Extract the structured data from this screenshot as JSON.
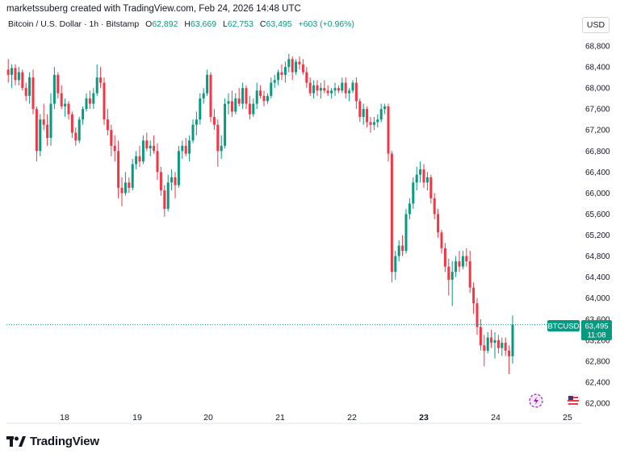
{
  "header": {
    "creator_line": "marketssuberg created with TradingView.com, Feb 24, 2026 14:48 UTC",
    "symbol": "Bitcoin / U.S. Dollar · 1h · Bitstamp",
    "ohlc": [
      {
        "label": "O",
        "value": "62,892"
      },
      {
        "label": "H",
        "value": "63,669"
      },
      {
        "label": "L",
        "value": "62,753"
      },
      {
        "label": "C",
        "value": "63,495"
      }
    ],
    "change": "+603 (+0.96%)",
    "currency_button": "USD"
  },
  "price_badge": {
    "ticker": "BTCUSD",
    "price": "63,495",
    "countdown": "11:08"
  },
  "colors": {
    "up": "#089981",
    "down": "#f23645",
    "accent": "#089981"
  },
  "footer": {
    "logo_text": "TradingView"
  },
  "chart_data": {
    "type": "candlestick",
    "title": "Bitcoin / U.S. Dollar · 1h · Bitstamp",
    "ylim": [
      62000,
      68800
    ],
    "y_ticks": [
      "62,000",
      "62,400",
      "62,800",
      "63,200",
      "63,600",
      "64,000",
      "64,400",
      "64,800",
      "65,200",
      "65,600",
      "66,000",
      "66,400",
      "66,800",
      "67,200",
      "67,600",
      "68,000",
      "68,400",
      "68,800"
    ],
    "x_ticks": [
      {
        "label": "18",
        "bold": false
      },
      {
        "label": "19",
        "bold": false
      },
      {
        "label": "20",
        "bold": false
      },
      {
        "label": "21",
        "bold": false
      },
      {
        "label": "22",
        "bold": false
      },
      {
        "label": "23",
        "bold": true
      },
      {
        "label": "24",
        "bold": false
      },
      {
        "label": "25",
        "bold": false
      }
    ],
    "last_price": 63495,
    "candles": [
      {
        "o": 68350,
        "h": 68550,
        "l": 68100,
        "c": 68250
      },
      {
        "o": 68250,
        "h": 68450,
        "l": 68000,
        "c": 68380
      },
      {
        "o": 68380,
        "h": 68450,
        "l": 68050,
        "c": 68150
      },
      {
        "o": 68150,
        "h": 68400,
        "l": 68050,
        "c": 68300
      },
      {
        "o": 68300,
        "h": 68350,
        "l": 67950,
        "c": 68000
      },
      {
        "o": 68000,
        "h": 68100,
        "l": 67750,
        "c": 67850
      },
      {
        "o": 67850,
        "h": 68300,
        "l": 67700,
        "c": 68200
      },
      {
        "o": 68200,
        "h": 68350,
        "l": 67500,
        "c": 67600
      },
      {
        "o": 67600,
        "h": 67650,
        "l": 66600,
        "c": 66800
      },
      {
        "o": 66800,
        "h": 67500,
        "l": 66700,
        "c": 67400
      },
      {
        "o": 67400,
        "h": 67700,
        "l": 67200,
        "c": 67300
      },
      {
        "o": 67300,
        "h": 67500,
        "l": 66900,
        "c": 67050
      },
      {
        "o": 67050,
        "h": 67900,
        "l": 66900,
        "c": 67700
      },
      {
        "o": 67700,
        "h": 68400,
        "l": 67600,
        "c": 68250
      },
      {
        "o": 68250,
        "h": 68300,
        "l": 67800,
        "c": 67900
      },
      {
        "o": 67900,
        "h": 68050,
        "l": 67600,
        "c": 67650
      },
      {
        "o": 67650,
        "h": 67800,
        "l": 67450,
        "c": 67700
      },
      {
        "o": 67700,
        "h": 67750,
        "l": 67400,
        "c": 67500
      },
      {
        "o": 67500,
        "h": 67550,
        "l": 67050,
        "c": 67150
      },
      {
        "o": 67150,
        "h": 67250,
        "l": 66900,
        "c": 67000
      },
      {
        "o": 67000,
        "h": 67450,
        "l": 66950,
        "c": 67400
      },
      {
        "o": 67400,
        "h": 67650,
        "l": 67300,
        "c": 67600
      },
      {
        "o": 67600,
        "h": 67900,
        "l": 67550,
        "c": 67800
      },
      {
        "o": 67800,
        "h": 67950,
        "l": 67600,
        "c": 67700
      },
      {
        "o": 67700,
        "h": 68000,
        "l": 67600,
        "c": 67900
      },
      {
        "o": 67900,
        "h": 68450,
        "l": 67850,
        "c": 68200
      },
      {
        "o": 68200,
        "h": 68400,
        "l": 68000,
        "c": 68100
      },
      {
        "o": 68100,
        "h": 68200,
        "l": 67300,
        "c": 67400
      },
      {
        "o": 67400,
        "h": 67600,
        "l": 67100,
        "c": 67200
      },
      {
        "o": 67200,
        "h": 67300,
        "l": 66700,
        "c": 66900
      },
      {
        "o": 66900,
        "h": 67100,
        "l": 66600,
        "c": 66800
      },
      {
        "o": 66800,
        "h": 67000,
        "l": 65900,
        "c": 66100
      },
      {
        "o": 66100,
        "h": 66300,
        "l": 65750,
        "c": 66000
      },
      {
        "o": 66000,
        "h": 66400,
        "l": 65950,
        "c": 66200
      },
      {
        "o": 66200,
        "h": 66300,
        "l": 66000,
        "c": 66100
      },
      {
        "o": 66100,
        "h": 66650,
        "l": 66050,
        "c": 66550
      },
      {
        "o": 66550,
        "h": 66800,
        "l": 66450,
        "c": 66700
      },
      {
        "o": 66700,
        "h": 66900,
        "l": 66500,
        "c": 66600
      },
      {
        "o": 66600,
        "h": 67100,
        "l": 66550,
        "c": 67000
      },
      {
        "o": 67000,
        "h": 67150,
        "l": 66800,
        "c": 66850
      },
      {
        "o": 66850,
        "h": 67000,
        "l": 66700,
        "c": 66900
      },
      {
        "o": 66900,
        "h": 67100,
        "l": 66750,
        "c": 66800
      },
      {
        "o": 66800,
        "h": 66950,
        "l": 66250,
        "c": 66400
      },
      {
        "o": 66400,
        "h": 66500,
        "l": 65950,
        "c": 66050
      },
      {
        "o": 66050,
        "h": 66150,
        "l": 65550,
        "c": 65700
      },
      {
        "o": 65700,
        "h": 66350,
        "l": 65650,
        "c": 66200
      },
      {
        "o": 66200,
        "h": 66450,
        "l": 66050,
        "c": 66300
      },
      {
        "o": 66300,
        "h": 66400,
        "l": 65900,
        "c": 66150
      },
      {
        "o": 66150,
        "h": 66900,
        "l": 66100,
        "c": 66800
      },
      {
        "o": 66800,
        "h": 67000,
        "l": 66650,
        "c": 66900
      },
      {
        "o": 66900,
        "h": 67050,
        "l": 66700,
        "c": 66750
      },
      {
        "o": 66750,
        "h": 67100,
        "l": 66600,
        "c": 67000
      },
      {
        "o": 67000,
        "h": 67400,
        "l": 66950,
        "c": 67300
      },
      {
        "o": 67300,
        "h": 67550,
        "l": 67100,
        "c": 67400
      },
      {
        "o": 67400,
        "h": 67900,
        "l": 67300,
        "c": 67800
      },
      {
        "o": 67800,
        "h": 68000,
        "l": 67700,
        "c": 67900
      },
      {
        "o": 67900,
        "h": 68350,
        "l": 67850,
        "c": 68250
      },
      {
        "o": 68250,
        "h": 68300,
        "l": 67350,
        "c": 67450
      },
      {
        "o": 67450,
        "h": 67600,
        "l": 67200,
        "c": 67300
      },
      {
        "o": 67300,
        "h": 67400,
        "l": 66500,
        "c": 66800
      },
      {
        "o": 66800,
        "h": 67100,
        "l": 66650,
        "c": 66900
      },
      {
        "o": 66900,
        "h": 67800,
        "l": 66850,
        "c": 67700
      },
      {
        "o": 67700,
        "h": 67900,
        "l": 67500,
        "c": 67750
      },
      {
        "o": 67750,
        "h": 67950,
        "l": 67450,
        "c": 67550
      },
      {
        "o": 67550,
        "h": 67900,
        "l": 67500,
        "c": 67800
      },
      {
        "o": 67800,
        "h": 68000,
        "l": 67650,
        "c": 67700
      },
      {
        "o": 67700,
        "h": 68100,
        "l": 67600,
        "c": 68000
      },
      {
        "o": 68000,
        "h": 68050,
        "l": 67600,
        "c": 67700
      },
      {
        "o": 67700,
        "h": 67850,
        "l": 67400,
        "c": 67500
      },
      {
        "o": 67500,
        "h": 67800,
        "l": 67450,
        "c": 67700
      },
      {
        "o": 67700,
        "h": 68100,
        "l": 67600,
        "c": 67950
      },
      {
        "o": 67950,
        "h": 68050,
        "l": 67800,
        "c": 67850
      },
      {
        "o": 67850,
        "h": 67950,
        "l": 67650,
        "c": 67750
      },
      {
        "o": 67750,
        "h": 67900,
        "l": 67700,
        "c": 67850
      },
      {
        "o": 67850,
        "h": 68200,
        "l": 67800,
        "c": 68100
      },
      {
        "o": 68100,
        "h": 68250,
        "l": 68000,
        "c": 68150
      },
      {
        "o": 68150,
        "h": 68350,
        "l": 68050,
        "c": 68300
      },
      {
        "o": 68300,
        "h": 68450,
        "l": 68150,
        "c": 68250
      },
      {
        "o": 68250,
        "h": 68500,
        "l": 68100,
        "c": 68400
      },
      {
        "o": 68400,
        "h": 68650,
        "l": 68300,
        "c": 68550
      },
      {
        "o": 68550,
        "h": 68600,
        "l": 68150,
        "c": 68300
      },
      {
        "o": 68300,
        "h": 68550,
        "l": 68250,
        "c": 68500
      },
      {
        "o": 68500,
        "h": 68600,
        "l": 68350,
        "c": 68450
      },
      {
        "o": 68450,
        "h": 68550,
        "l": 68250,
        "c": 68300
      },
      {
        "o": 68300,
        "h": 68400,
        "l": 68000,
        "c": 68100
      },
      {
        "o": 68100,
        "h": 68200,
        "l": 67850,
        "c": 67900
      },
      {
        "o": 67900,
        "h": 68150,
        "l": 67800,
        "c": 68050
      },
      {
        "o": 68050,
        "h": 68150,
        "l": 67850,
        "c": 67950
      },
      {
        "o": 67950,
        "h": 68100,
        "l": 67800,
        "c": 68000
      },
      {
        "o": 68000,
        "h": 68150,
        "l": 67900,
        "c": 67950
      },
      {
        "o": 67950,
        "h": 68050,
        "l": 67850,
        "c": 67900
      },
      {
        "o": 67900,
        "h": 68000,
        "l": 67800,
        "c": 67950
      },
      {
        "o": 67950,
        "h": 68100,
        "l": 67850,
        "c": 68000
      },
      {
        "o": 68000,
        "h": 68050,
        "l": 67900,
        "c": 67950
      },
      {
        "o": 67950,
        "h": 68200,
        "l": 67900,
        "c": 68100
      },
      {
        "o": 68100,
        "h": 68200,
        "l": 67800,
        "c": 67900
      },
      {
        "o": 67900,
        "h": 68000,
        "l": 67750,
        "c": 67950
      },
      {
        "o": 67950,
        "h": 68150,
        "l": 67900,
        "c": 68100
      },
      {
        "o": 68100,
        "h": 68200,
        "l": 67600,
        "c": 67750
      },
      {
        "o": 67750,
        "h": 67800,
        "l": 67350,
        "c": 67450
      },
      {
        "o": 67450,
        "h": 67700,
        "l": 67300,
        "c": 67600
      },
      {
        "o": 67600,
        "h": 67650,
        "l": 67250,
        "c": 67350
      },
      {
        "o": 67350,
        "h": 67450,
        "l": 67150,
        "c": 67300
      },
      {
        "o": 67300,
        "h": 67450,
        "l": 67200,
        "c": 67350
      },
      {
        "o": 67350,
        "h": 67500,
        "l": 67250,
        "c": 67400
      },
      {
        "o": 67400,
        "h": 67700,
        "l": 67350,
        "c": 67600
      },
      {
        "o": 67600,
        "h": 67700,
        "l": 67500,
        "c": 67650
      },
      {
        "o": 67650,
        "h": 67700,
        "l": 66600,
        "c": 66750
      },
      {
        "o": 66750,
        "h": 66800,
        "l": 64300,
        "c": 64500
      },
      {
        "o": 64500,
        "h": 64900,
        "l": 64350,
        "c": 64800
      },
      {
        "o": 64800,
        "h": 65100,
        "l": 64700,
        "c": 65000
      },
      {
        "o": 65000,
        "h": 65200,
        "l": 64800,
        "c": 64900
      },
      {
        "o": 64900,
        "h": 65700,
        "l": 64850,
        "c": 65600
      },
      {
        "o": 65600,
        "h": 65900,
        "l": 65500,
        "c": 65800
      },
      {
        "o": 65800,
        "h": 66300,
        "l": 65700,
        "c": 66200
      },
      {
        "o": 66200,
        "h": 66500,
        "l": 66050,
        "c": 66350
      },
      {
        "o": 66350,
        "h": 66600,
        "l": 66200,
        "c": 66450
      },
      {
        "o": 66450,
        "h": 66550,
        "l": 66100,
        "c": 66200
      },
      {
        "o": 66200,
        "h": 66400,
        "l": 66050,
        "c": 66300
      },
      {
        "o": 66300,
        "h": 66350,
        "l": 65800,
        "c": 65900
      },
      {
        "o": 65900,
        "h": 66000,
        "l": 65500,
        "c": 65600
      },
      {
        "o": 65600,
        "h": 65700,
        "l": 65150,
        "c": 65250
      },
      {
        "o": 65250,
        "h": 65300,
        "l": 64850,
        "c": 64950
      },
      {
        "o": 64950,
        "h": 65050,
        "l": 64500,
        "c": 64600
      },
      {
        "o": 64600,
        "h": 64750,
        "l": 64050,
        "c": 64350
      },
      {
        "o": 64350,
        "h": 64700,
        "l": 63850,
        "c": 64500
      },
      {
        "o": 64500,
        "h": 64800,
        "l": 64400,
        "c": 64700
      },
      {
        "o": 64700,
        "h": 64900,
        "l": 64500,
        "c": 64600
      },
      {
        "o": 64600,
        "h": 64900,
        "l": 64550,
        "c": 64800
      },
      {
        "o": 64800,
        "h": 64950,
        "l": 64600,
        "c": 64700
      },
      {
        "o": 64700,
        "h": 64900,
        "l": 64100,
        "c": 64200
      },
      {
        "o": 64200,
        "h": 64300,
        "l": 63700,
        "c": 63900
      },
      {
        "o": 63900,
        "h": 64000,
        "l": 63300,
        "c": 63450
      },
      {
        "o": 63450,
        "h": 63600,
        "l": 63000,
        "c": 63100
      },
      {
        "o": 63100,
        "h": 63300,
        "l": 62700,
        "c": 63000
      },
      {
        "o": 63000,
        "h": 63350,
        "l": 62950,
        "c": 63250
      },
      {
        "o": 63250,
        "h": 63400,
        "l": 63050,
        "c": 63150
      },
      {
        "o": 63150,
        "h": 63350,
        "l": 62850,
        "c": 63200
      },
      {
        "o": 63200,
        "h": 63300,
        "l": 62950,
        "c": 63050
      },
      {
        "o": 63050,
        "h": 63250,
        "l": 62900,
        "c": 63150
      },
      {
        "o": 63150,
        "h": 63250,
        "l": 62900,
        "c": 63000
      },
      {
        "o": 63000,
        "h": 63100,
        "l": 62550,
        "c": 62892
      },
      {
        "o": 62892,
        "h": 63669,
        "l": 62753,
        "c": 63495
      }
    ]
  }
}
